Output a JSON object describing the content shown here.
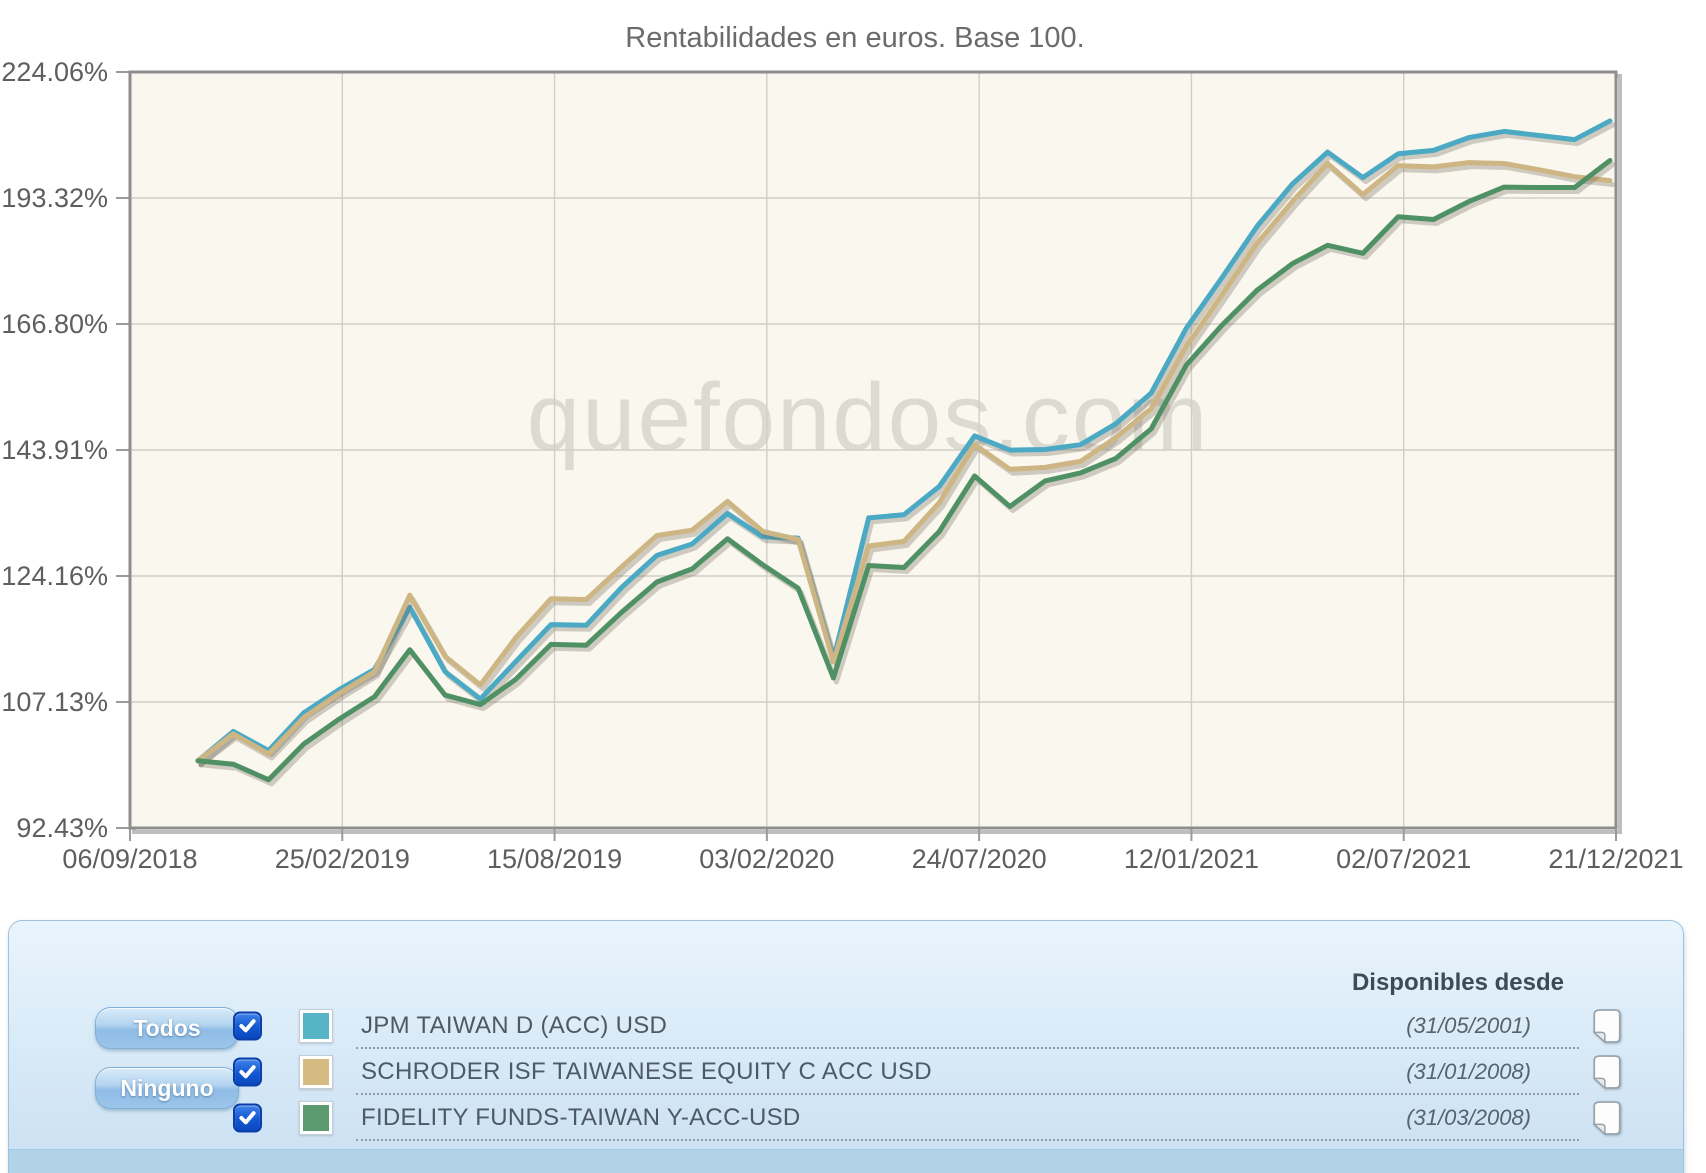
{
  "chart": {
    "title": "Rentabilidades en euros. Base 100.",
    "watermark": "quefondos.com",
    "plot_background": "#FAF7EE",
    "border_color": "#8E8E8E",
    "gridline_color": "#D2D0C6",
    "tick_text_color": "#5E5E5E",
    "title_color": "#6B6B6B",
    "watermark_color": "#C7C4BB"
  },
  "chart_data": {
    "type": "line",
    "title": "Rentabilidades en euros. Base 100.",
    "grid": true,
    "legend_position": "bottom-panel",
    "y_axis": {
      "scale": "log",
      "min": 92.43,
      "max": 224.06,
      "tick_labels": [
        "224.06%",
        "193.32%",
        "166.80%",
        "143.91%",
        "124.16%",
        "107.13%",
        "92.43%"
      ]
    },
    "x_axis": {
      "tick_labels": [
        "06/09/2018",
        "25/02/2019",
        "15/08/2019",
        "03/02/2020",
        "24/07/2020",
        "12/01/2021",
        "02/07/2021",
        "21/12/2021"
      ]
    },
    "series": [
      {
        "name": "JPM TAIWAN D (ACC) USD",
        "color": "#4BA9C4",
        "values": [
          100,
          103.5,
          101.2,
          105.8,
          108.7,
          111.3,
          119.7,
          111,
          107.5,
          112.3,
          117.3,
          117.2,
          122.5,
          127.2,
          128.9,
          133.6,
          130,
          129.8,
          112.6,
          132.9,
          133.4,
          137.9,
          146.3,
          143.9,
          144,
          144.8,
          148.4,
          153.8,
          166,
          176,
          187,
          196.5,
          204,
          198,
          203.6,
          204.4,
          207.5,
          209,
          208,
          207,
          211.6
        ]
      },
      {
        "name": "SCHRODER ISF TAIWANESE EQUITY C ACC USD",
        "color": "#CDB584",
        "values": [
          100,
          103.2,
          100.8,
          105.2,
          108.2,
          111,
          121.4,
          113,
          109.3,
          115.5,
          120.9,
          120.8,
          125.5,
          130.2,
          131,
          135.5,
          130.8,
          129.6,
          112.3,
          128.6,
          129.3,
          135.3,
          144.8,
          140.7,
          141,
          142,
          146,
          151,
          162.5,
          172.5,
          183.3,
          192.5,
          201.3,
          194.1,
          200.8,
          200.5,
          201.5,
          201.3,
          199.8,
          198.2,
          197.3
        ]
      },
      {
        "name": "FIDELITY FUNDS-TAIWAN Y-ACC-USD",
        "color": "#4F9065",
        "values": [
          100,
          99.6,
          97.8,
          102,
          105,
          107.8,
          113.9,
          108,
          106.8,
          110,
          114.6,
          114.5,
          119,
          123.3,
          125.2,
          129.7,
          125.8,
          122.4,
          110.2,
          125.7,
          125.4,
          130.8,
          139.6,
          134.7,
          138.8,
          140.1,
          142.5,
          147.5,
          159,
          166.5,
          173.5,
          179,
          182.9,
          181.2,
          189.1,
          188.5,
          192.5,
          195.8,
          195.7,
          195.7,
          202
        ]
      }
    ]
  },
  "legend_panel": {
    "header": "Disponibles desde",
    "buttons": {
      "all": "Todos",
      "none": "Ninguno"
    },
    "rows": [
      {
        "label": "JPM TAIWAN D (ACC) USD",
        "color": "#57B4C6",
        "available_since": "(31/05/2001)",
        "checked": true
      },
      {
        "label": "SCHRODER ISF TAIWANESE EQUITY C ACC USD",
        "color": "#D5BB82",
        "available_since": "(31/01/2008)",
        "checked": true
      },
      {
        "label": "FIDELITY FUNDS-TAIWAN Y-ACC-USD",
        "color": "#5C9B6F",
        "available_since": "(31/03/2008)",
        "checked": true
      }
    ]
  }
}
